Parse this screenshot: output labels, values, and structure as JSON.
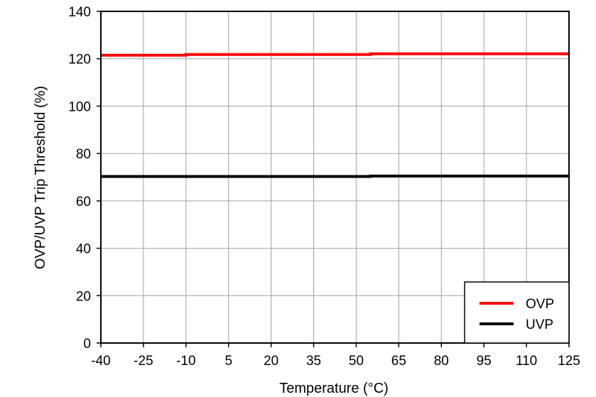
{
  "chart_data": {
    "type": "line",
    "title": "",
    "xlabel": "Temperature (°C)",
    "ylabel": "OVP/UVP Trip Threshold  (%)",
    "xlim": [
      -40,
      125
    ],
    "ylim": [
      0,
      140
    ],
    "x_ticks": [
      -40,
      -25,
      -10,
      5,
      20,
      35,
      50,
      65,
      80,
      95,
      110,
      125
    ],
    "y_ticks": [
      0,
      20,
      40,
      60,
      80,
      100,
      120,
      140
    ],
    "grid": true,
    "legend_position": "lower right",
    "x": [
      -40,
      -10,
      55,
      125
    ],
    "series": [
      {
        "name": "OVP",
        "color": "#ff0000",
        "values": [
          121.5,
          121.8,
          122.1,
          122.2
        ]
      },
      {
        "name": "UVP",
        "color": "#000000",
        "values": [
          70.3,
          70.3,
          70.5,
          70.8
        ]
      }
    ]
  },
  "legend": {
    "items": [
      {
        "label": "OVP",
        "color": "#ff0000"
      },
      {
        "label": "UVP",
        "color": "#000000"
      }
    ]
  }
}
